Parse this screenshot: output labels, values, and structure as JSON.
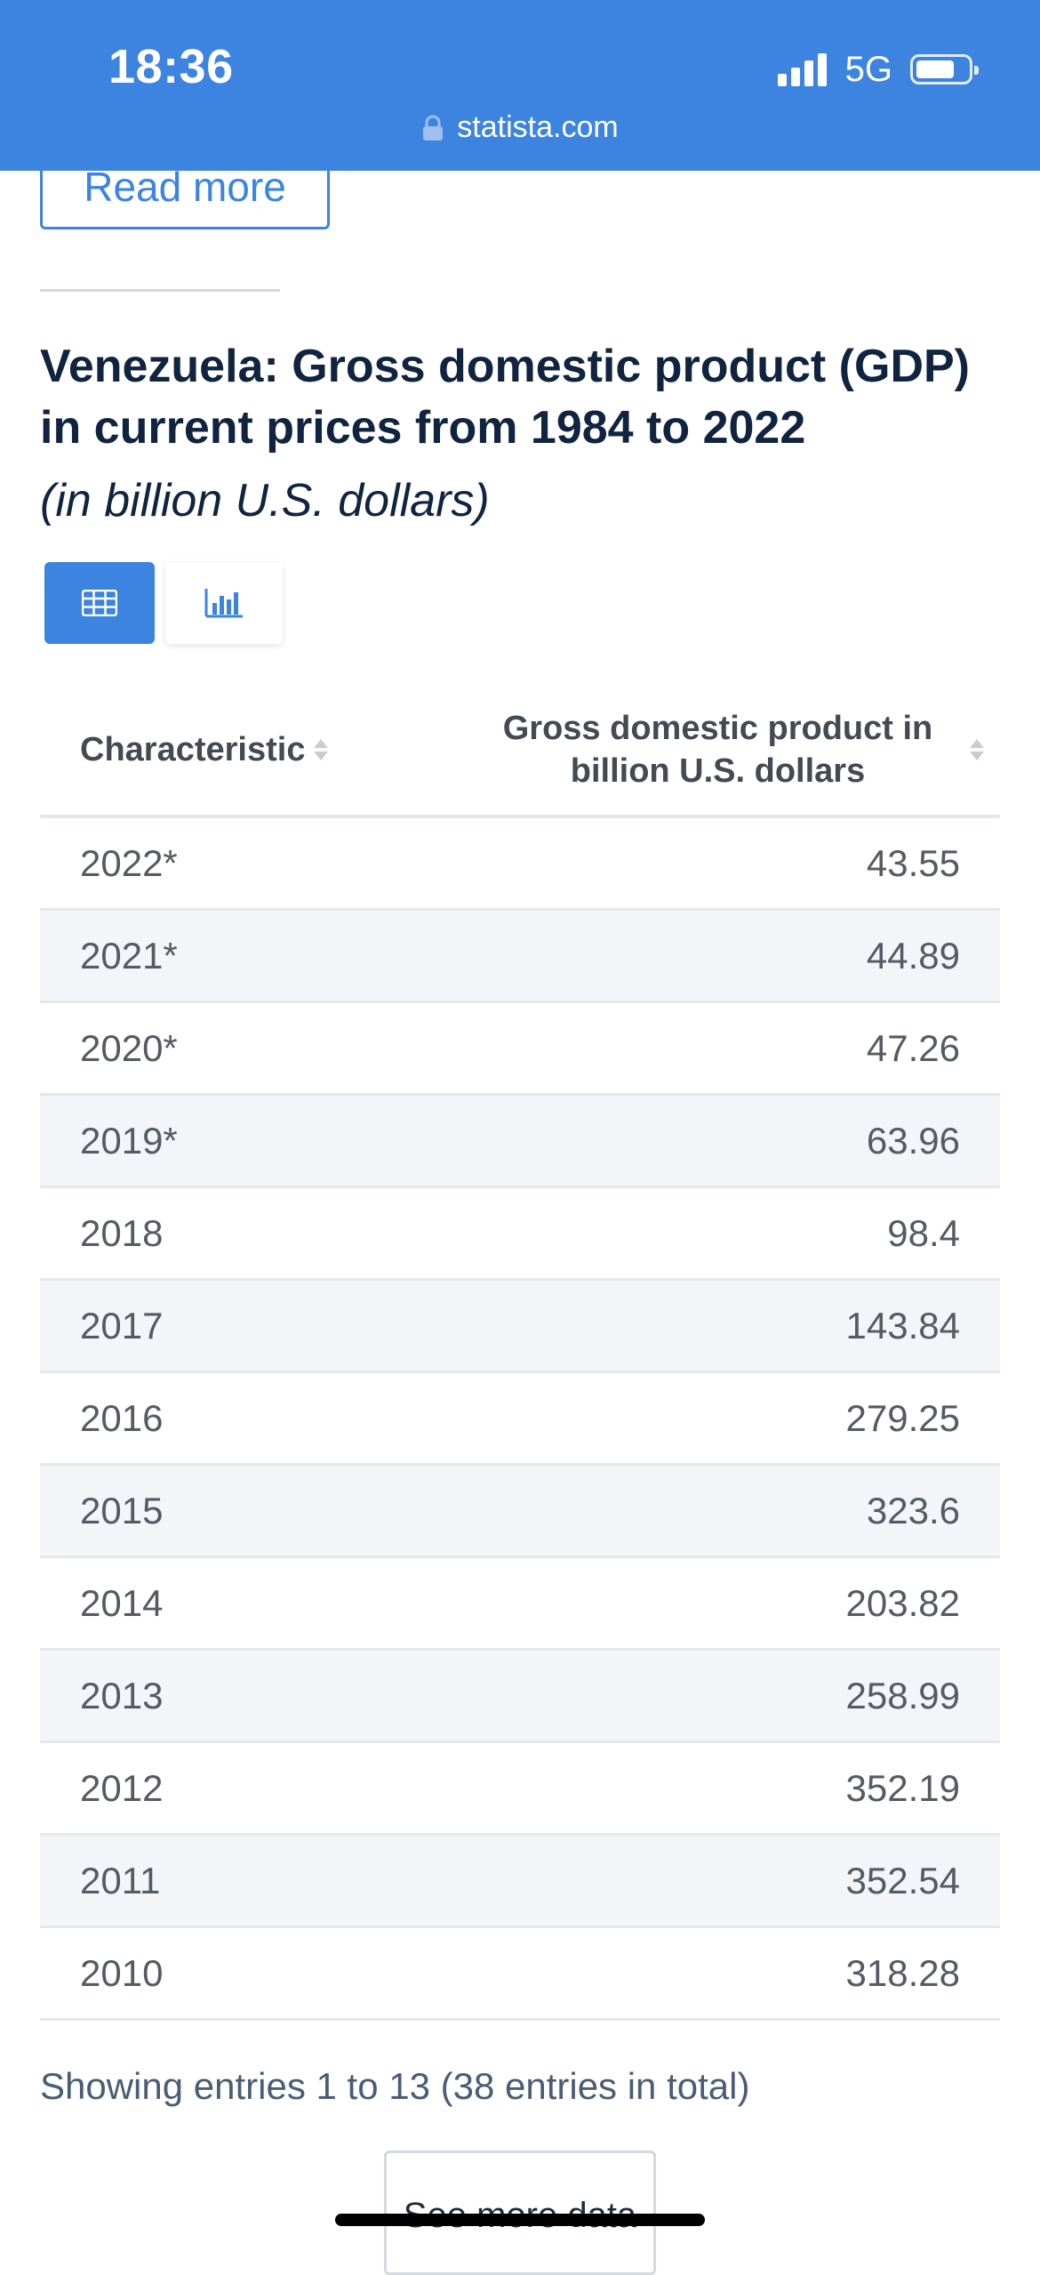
{
  "status_bar": {
    "time": "18:36",
    "network": "5G",
    "url": "statista.com",
    "battery_level": 0.75
  },
  "read_more_label": "Read more",
  "title": "Venezuela: Gross domestic product (GDP) in current prices from 1984 to 2022",
  "subtitle": "(in billion U.S. dollars)",
  "view_toggle": {
    "table_icon": "table-icon",
    "chart_icon": "bar-chart-icon",
    "active": "table"
  },
  "table": {
    "headers": {
      "characteristic": "Characteristic",
      "value": "Gross domestic product in billion U.S. dollars"
    },
    "rows": [
      {
        "year": "2022*",
        "value": "43.55"
      },
      {
        "year": "2021*",
        "value": "44.89"
      },
      {
        "year": "2020*",
        "value": "47.26"
      },
      {
        "year": "2019*",
        "value": "63.96"
      },
      {
        "year": "2018",
        "value": "98.4"
      },
      {
        "year": "2017",
        "value": "143.84"
      },
      {
        "year": "2016",
        "value": "279.25"
      },
      {
        "year": "2015",
        "value": "323.6"
      },
      {
        "year": "2014",
        "value": "203.82"
      },
      {
        "year": "2013",
        "value": "258.99"
      },
      {
        "year": "2012",
        "value": "352.19"
      },
      {
        "year": "2011",
        "value": "352.54"
      },
      {
        "year": "2010",
        "value": "318.28"
      }
    ]
  },
  "entries_info": "Showing entries 1 to 13 (38 entries in total)",
  "see_more_label": "See more data",
  "colors": {
    "accent": "#3c84e0",
    "title_text": "#102440",
    "row_alt": "#f4f5f8"
  }
}
